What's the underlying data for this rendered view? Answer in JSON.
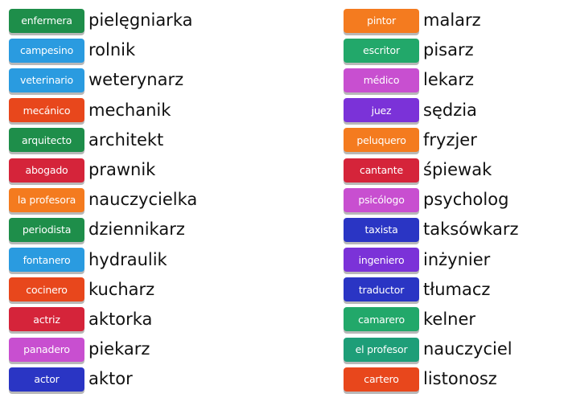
{
  "left_pairs": [
    {
      "tile": "enfermera",
      "word": "pielęgniarka",
      "color": "#1e8e4a"
    },
    {
      "tile": "campesino",
      "word": "rolnik",
      "color": "#2a9be0"
    },
    {
      "tile": "veterinario",
      "word": "weterynarz",
      "color": "#2a9be0"
    },
    {
      "tile": "mecánico",
      "word": "mechanik",
      "color": "#e8471c"
    },
    {
      "tile": "arquitecto",
      "word": "architekt",
      "color": "#1e8e4a"
    },
    {
      "tile": "abogado",
      "word": "prawnik",
      "color": "#d5243a"
    },
    {
      "tile": "la profesora",
      "word": "nauczycielka",
      "color": "#f47b1f"
    },
    {
      "tile": "periodista",
      "word": "dziennikarz",
      "color": "#1e8e4a"
    },
    {
      "tile": "fontanero",
      "word": "hydraulik",
      "color": "#2a9be0"
    },
    {
      "tile": "cocinero",
      "word": "kucharz",
      "color": "#e8471c"
    },
    {
      "tile": "actriz",
      "word": "aktorka",
      "color": "#d5243a"
    },
    {
      "tile": "panadero",
      "word": "piekarz",
      "color": "#c84fd0"
    },
    {
      "tile": "actor",
      "word": "aktor",
      "color": "#2a35c4"
    }
  ],
  "right_pairs": [
    {
      "tile": "pintor",
      "word": "malarz",
      "color": "#f47b1f"
    },
    {
      "tile": "escritor",
      "word": "pisarz",
      "color": "#22a86a"
    },
    {
      "tile": "médico",
      "word": "lekarz",
      "color": "#c84fd0"
    },
    {
      "tile": "juez",
      "word": "sędzia",
      "color": "#7b32d8"
    },
    {
      "tile": "peluquero",
      "word": "fryzjer",
      "color": "#f47b1f"
    },
    {
      "tile": "cantante",
      "word": "śpiewak",
      "color": "#d5243a"
    },
    {
      "tile": "psicólogo",
      "word": "psycholog",
      "color": "#c84fd0"
    },
    {
      "tile": "taxista",
      "word": "taksówkarz",
      "color": "#2a35c4"
    },
    {
      "tile": "ingeniero",
      "word": "inżynier",
      "color": "#7b32d8"
    },
    {
      "tile": "traductor",
      "word": "tłumacz",
      "color": "#2a35c4"
    },
    {
      "tile": "camarero",
      "word": "kelner",
      "color": "#22a86a"
    },
    {
      "tile": "el profesor",
      "word": "nauczyciel",
      "color": "#1e9e78"
    },
    {
      "tile": "cartero",
      "word": "listonosz",
      "color": "#e8471c"
    }
  ]
}
